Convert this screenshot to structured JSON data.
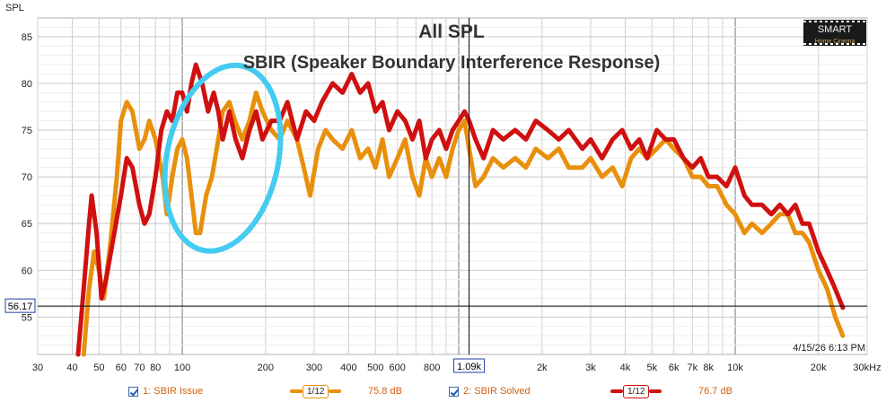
{
  "chart_data": {
    "type": "line",
    "title": "All SPL",
    "subtitle": "SBIR (Speaker Boundary Interference Response)",
    "ylabel": "SPL",
    "xlabel": "",
    "x_unit": "Hz",
    "x_scale": "log",
    "xlim": [
      30,
      30000
    ],
    "ylim": [
      51,
      87
    ],
    "grid": true,
    "yticks": [
      55,
      60,
      65,
      70,
      75,
      80,
      85
    ],
    "xtick_labels": [
      {
        "v": 30,
        "t": "30"
      },
      {
        "v": 40,
        "t": "40"
      },
      {
        "v": 50,
        "t": "50"
      },
      {
        "v": 60,
        "t": "60"
      },
      {
        "v": 70,
        "t": "70"
      },
      {
        "v": 80,
        "t": "80"
      },
      {
        "v": 100,
        "t": "100"
      },
      {
        "v": 200,
        "t": "200"
      },
      {
        "v": 300,
        "t": "300"
      },
      {
        "v": 400,
        "t": "400"
      },
      {
        "v": 500,
        "t": "500"
      },
      {
        "v": 600,
        "t": "600"
      },
      {
        "v": 800,
        "t": "800"
      },
      {
        "v": 2000,
        "t": "2k"
      },
      {
        "v": 3000,
        "t": "3k"
      },
      {
        "v": 4000,
        "t": "4k"
      },
      {
        "v": 5000,
        "t": "5k"
      },
      {
        "v": 6000,
        "t": "6k"
      },
      {
        "v": 7000,
        "t": "7k"
      },
      {
        "v": 8000,
        "t": "8k"
      },
      {
        "v": 10000,
        "t": "10k"
      },
      {
        "v": 20000,
        "t": "20k"
      },
      {
        "v": 30000,
        "t": "30kHz"
      }
    ],
    "cursor": {
      "x": 1090,
      "x_label": "1.09k",
      "y": 56.17,
      "y_label": "56.17"
    },
    "timestamp": "4/15/26 6:13 PM",
    "annotation": {
      "type": "ellipse",
      "color": "#44ccf0",
      "center_freq": 140,
      "center_spl": 72,
      "note": "highlighted region"
    },
    "series": [
      {
        "name": "1: SBIR Issue",
        "color": "#e8900c",
        "smoothing": "1/12",
        "level": "75.8 dB",
        "points": [
          [
            44,
            51
          ],
          [
            46,
            58
          ],
          [
            48,
            62
          ],
          [
            50,
            60
          ],
          [
            52,
            57
          ],
          [
            55,
            63
          ],
          [
            58,
            70
          ],
          [
            60,
            76
          ],
          [
            63,
            78
          ],
          [
            66,
            77
          ],
          [
            70,
            73
          ],
          [
            73,
            74
          ],
          [
            76,
            76
          ],
          [
            80,
            74
          ],
          [
            85,
            70
          ],
          [
            88,
            66
          ],
          [
            92,
            70
          ],
          [
            96,
            73
          ],
          [
            100,
            74
          ],
          [
            104,
            72
          ],
          [
            108,
            68
          ],
          [
            112,
            64
          ],
          [
            116,
            64
          ],
          [
            122,
            68
          ],
          [
            128,
            70
          ],
          [
            135,
            74
          ],
          [
            140,
            77
          ],
          [
            148,
            78
          ],
          [
            155,
            76
          ],
          [
            165,
            74
          ],
          [
            175,
            76
          ],
          [
            185,
            79
          ],
          [
            195,
            77
          ],
          [
            210,
            75
          ],
          [
            225,
            74
          ],
          [
            240,
            76
          ],
          [
            260,
            74
          ],
          [
            275,
            71
          ],
          [
            290,
            68
          ],
          [
            310,
            73
          ],
          [
            330,
            75
          ],
          [
            350,
            74
          ],
          [
            380,
            73
          ],
          [
            410,
            75
          ],
          [
            440,
            72
          ],
          [
            470,
            73
          ],
          [
            500,
            71
          ],
          [
            530,
            74
          ],
          [
            560,
            70
          ],
          [
            600,
            72
          ],
          [
            640,
            74
          ],
          [
            680,
            70
          ],
          [
            720,
            68
          ],
          [
            760,
            72
          ],
          [
            800,
            70
          ],
          [
            850,
            72
          ],
          [
            900,
            70
          ],
          [
            950,
            73
          ],
          [
            1000,
            75
          ],
          [
            1050,
            76
          ],
          [
            1090,
            73
          ],
          [
            1150,
            69
          ],
          [
            1230,
            70
          ],
          [
            1330,
            72
          ],
          [
            1450,
            71
          ],
          [
            1600,
            72
          ],
          [
            1750,
            71
          ],
          [
            1900,
            73
          ],
          [
            2100,
            72
          ],
          [
            2300,
            73
          ],
          [
            2500,
            71
          ],
          [
            2800,
            71
          ],
          [
            3000,
            72
          ],
          [
            3300,
            70
          ],
          [
            3600,
            71
          ],
          [
            3900,
            69
          ],
          [
            4200,
            72
          ],
          [
            4500,
            73
          ],
          [
            4800,
            72
          ],
          [
            5200,
            73
          ],
          [
            5600,
            74
          ],
          [
            6000,
            73
          ],
          [
            6500,
            72
          ],
          [
            7000,
            70
          ],
          [
            7500,
            70
          ],
          [
            8000,
            69
          ],
          [
            8600,
            69
          ],
          [
            9300,
            67
          ],
          [
            10000,
            66
          ],
          [
            10800,
            64
          ],
          [
            11500,
            65
          ],
          [
            12500,
            64
          ],
          [
            13500,
            65
          ],
          [
            14500,
            66
          ],
          [
            15500,
            66
          ],
          [
            16500,
            64
          ],
          [
            17500,
            64
          ],
          [
            18500,
            63
          ],
          [
            20000,
            60
          ],
          [
            21500,
            58
          ],
          [
            23000,
            55
          ],
          [
            24500,
            53
          ]
        ]
      },
      {
        "name": "2: SBIR Solved",
        "color": "#d01010",
        "smoothing": "1/12",
        "level": "76.7 dB",
        "points": [
          [
            42,
            51
          ],
          [
            44,
            58
          ],
          [
            46,
            65
          ],
          [
            47,
            68
          ],
          [
            49,
            64
          ],
          [
            51,
            57
          ],
          [
            53,
            59
          ],
          [
            56,
            63
          ],
          [
            60,
            68
          ],
          [
            63,
            72
          ],
          [
            66,
            71
          ],
          [
            70,
            67
          ],
          [
            73,
            65
          ],
          [
            76,
            66
          ],
          [
            80,
            70
          ],
          [
            84,
            75
          ],
          [
            88,
            77
          ],
          [
            92,
            76
          ],
          [
            96,
            79
          ],
          [
            100,
            79
          ],
          [
            104,
            77
          ],
          [
            108,
            80
          ],
          [
            112,
            82
          ],
          [
            118,
            80
          ],
          [
            124,
            77
          ],
          [
            130,
            79
          ],
          [
            135,
            77
          ],
          [
            140,
            74
          ],
          [
            148,
            77
          ],
          [
            156,
            74
          ],
          [
            165,
            72
          ],
          [
            175,
            75
          ],
          [
            185,
            77
          ],
          [
            195,
            74
          ],
          [
            210,
            76
          ],
          [
            225,
            76
          ],
          [
            240,
            78
          ],
          [
            260,
            74
          ],
          [
            280,
            77
          ],
          [
            300,
            76
          ],
          [
            320,
            78
          ],
          [
            350,
            80
          ],
          [
            380,
            79
          ],
          [
            410,
            81
          ],
          [
            440,
            79
          ],
          [
            470,
            80
          ],
          [
            500,
            77
          ],
          [
            530,
            78
          ],
          [
            560,
            75
          ],
          [
            600,
            77
          ],
          [
            640,
            76
          ],
          [
            680,
            74
          ],
          [
            720,
            76
          ],
          [
            760,
            72
          ],
          [
            800,
            74
          ],
          [
            850,
            75
          ],
          [
            900,
            73
          ],
          [
            950,
            75
          ],
          [
            1000,
            76
          ],
          [
            1050,
            77
          ],
          [
            1090,
            76
          ],
          [
            1150,
            74
          ],
          [
            1230,
            72
          ],
          [
            1330,
            75
          ],
          [
            1450,
            74
          ],
          [
            1600,
            75
          ],
          [
            1750,
            74
          ],
          [
            1900,
            76
          ],
          [
            2100,
            75
          ],
          [
            2300,
            74
          ],
          [
            2500,
            75
          ],
          [
            2800,
            73
          ],
          [
            3000,
            74
          ],
          [
            3300,
            72
          ],
          [
            3600,
            74
          ],
          [
            3900,
            75
          ],
          [
            4200,
            73
          ],
          [
            4500,
            74
          ],
          [
            4800,
            72
          ],
          [
            5200,
            75
          ],
          [
            5600,
            74
          ],
          [
            6000,
            74
          ],
          [
            6500,
            72
          ],
          [
            7000,
            71
          ],
          [
            7500,
            72
          ],
          [
            8000,
            70
          ],
          [
            8600,
            70
          ],
          [
            9300,
            69
          ],
          [
            10000,
            71
          ],
          [
            10800,
            68
          ],
          [
            11500,
            67
          ],
          [
            12500,
            67
          ],
          [
            13500,
            66
          ],
          [
            14500,
            67
          ],
          [
            15500,
            66
          ],
          [
            16500,
            67
          ],
          [
            17500,
            65
          ],
          [
            18500,
            65
          ],
          [
            20000,
            62
          ],
          [
            21500,
            60
          ],
          [
            23000,
            58
          ],
          [
            24500,
            56
          ]
        ]
      }
    ]
  },
  "legend": {
    "item1": {
      "label": "1: SBIR Issue",
      "smoothing": "1/12",
      "level": "75.8 dB"
    },
    "item2": {
      "label": "2: SBIR Solved",
      "smoothing": "1/12",
      "level": "76.7 dB"
    }
  },
  "logo": {
    "text": "SMART",
    "subtext": "Home Cinema"
  },
  "colors": {
    "series1": "#e8900c",
    "series2": "#d01010",
    "annotation": "#44ccf0",
    "cursor_box": "#1e3ea0"
  }
}
